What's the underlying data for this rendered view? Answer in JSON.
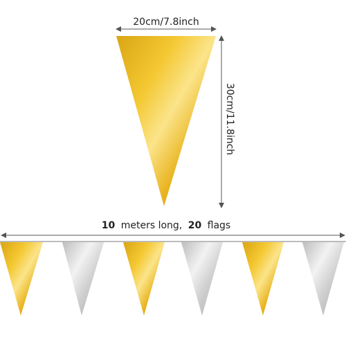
{
  "dimensions": {
    "width_label": "20cm/7.8inch",
    "height_label": "30cm/11.8inch"
  },
  "length_caption": {
    "count_length": "10",
    "length_text": "meters long,",
    "count_flags": "20",
    "flags_text": "flags"
  }
}
